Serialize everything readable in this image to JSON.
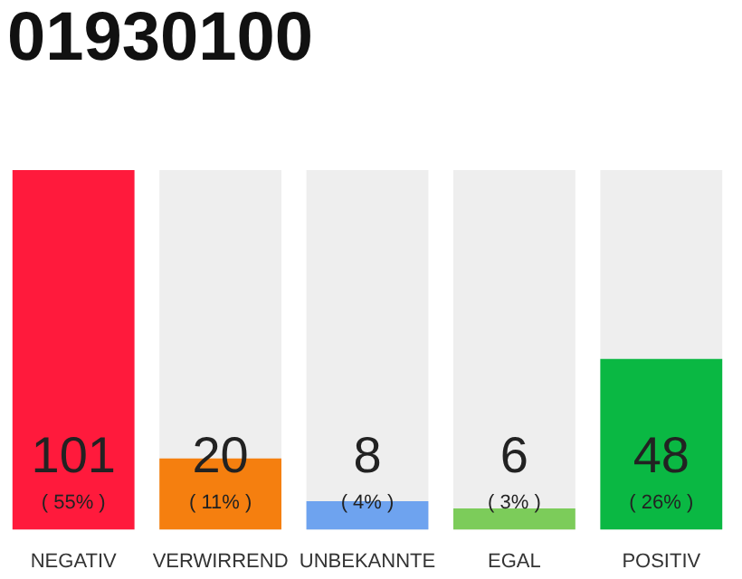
{
  "chart_data": {
    "type": "bar",
    "title": "01930100",
    "categories": [
      "NEGATIV",
      "VERWIRREND",
      "UNBEKANNTE",
      "EGAL",
      "POSITIV"
    ],
    "values": [
      101,
      20,
      8,
      6,
      48
    ],
    "colors": [
      "#ff1a3c",
      "#f57f0f",
      "#6ea3ef",
      "#7ccc5a",
      "#0ab843"
    ],
    "data_labels": true,
    "annotations": [
      "( 55% )",
      "( 11% )",
      "( 4% )",
      "( 3% )",
      "( 26% )"
    ]
  }
}
